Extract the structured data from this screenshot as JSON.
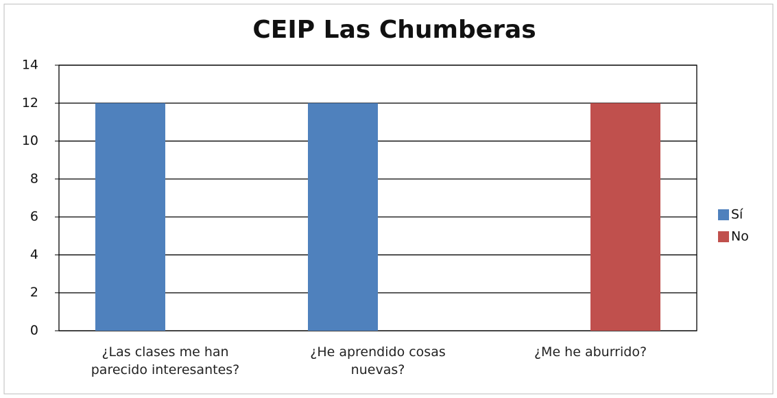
{
  "chart_data": {
    "type": "bar",
    "title": "CEIP Las Chumberas",
    "categories": [
      "¿Las clases me han parecido interesantes?",
      "¿He aprendido cosas nuevas?",
      "¿Me he aburrido?"
    ],
    "series": [
      {
        "name": "Sí",
        "color": "#4f81bd",
        "values": [
          12,
          12,
          0
        ]
      },
      {
        "name": "No",
        "color": "#c0504d",
        "values": [
          0,
          0,
          12
        ]
      }
    ],
    "ylim": [
      0,
      14
    ],
    "yticks": [
      0,
      2,
      4,
      6,
      8,
      10,
      12,
      14
    ],
    "grid": true,
    "legend": "right"
  }
}
